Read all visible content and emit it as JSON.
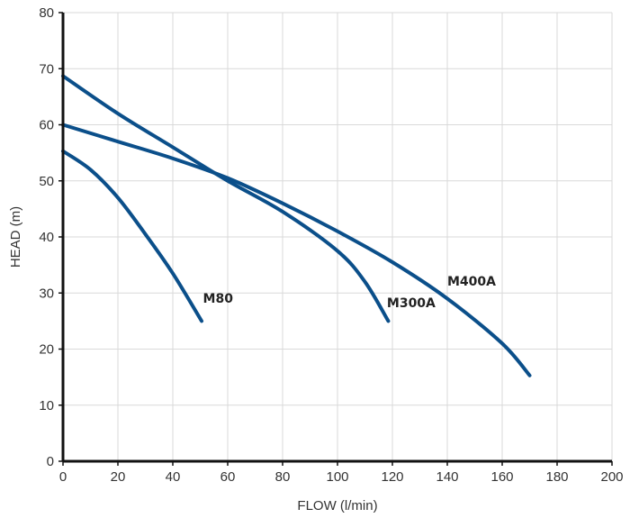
{
  "chart_data": {
    "type": "line",
    "title": "",
    "xlabel": "FLOW (l/min)",
    "ylabel": "HEAD (m)",
    "xlim": [
      0,
      200
    ],
    "ylim": [
      0,
      80
    ],
    "xticks": [
      0,
      20,
      40,
      60,
      80,
      100,
      120,
      140,
      160,
      180,
      200
    ],
    "yticks": [
      0,
      10,
      20,
      30,
      40,
      50,
      60,
      70,
      80
    ],
    "x_tick_labels": [
      "0",
      "20",
      "40",
      "60",
      "80",
      "100",
      "120",
      "140",
      "160",
      "180",
      "200"
    ],
    "y_tick_labels": [
      "0",
      "10",
      "20",
      "30",
      "40",
      "50",
      "60",
      "70",
      "80"
    ],
    "grid": true,
    "legend": "none",
    "line_color": "#0b4f8a",
    "series": [
      {
        "name": "M80",
        "x": [
          0,
          10,
          20,
          30,
          40,
          50.5
        ],
        "y": [
          55.3,
          52,
          47,
          40.5,
          33.5,
          25
        ]
      },
      {
        "name": "M300A",
        "x": [
          0,
          20,
          40,
          60,
          80,
          100,
          110,
          118.5
        ],
        "y": [
          68.7,
          62,
          56,
          50,
          44.5,
          37.5,
          32,
          25
        ]
      },
      {
        "name": "M400A",
        "x": [
          0,
          20,
          40,
          60,
          80,
          100,
          120,
          140,
          160,
          170
        ],
        "y": [
          60,
          57,
          54,
          50.5,
          46,
          41,
          35.5,
          29,
          21,
          15.3
        ]
      }
    ],
    "annotations": [
      {
        "id": "m80",
        "text": "M80",
        "x": 51,
        "y": 28.3
      },
      {
        "id": "m300a",
        "text": "M300A",
        "x": 118,
        "y": 27.5
      },
      {
        "id": "m400a",
        "text": "M400A",
        "x": 140,
        "y": 31.3
      }
    ]
  }
}
